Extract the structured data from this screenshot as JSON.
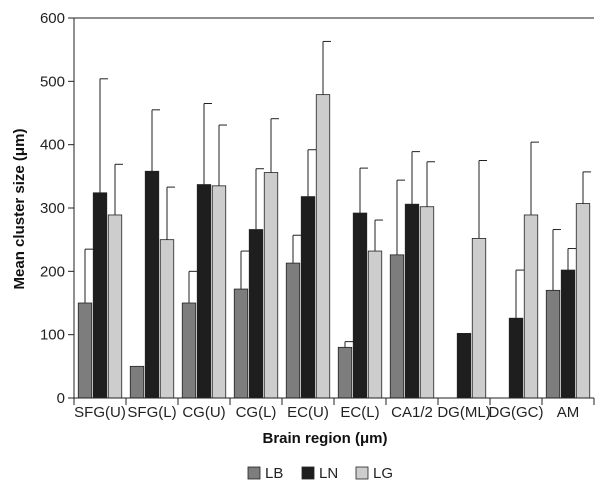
{
  "chart_data": {
    "type": "bar",
    "title": "",
    "xlabel": "Brain region (μm)",
    "ylabel": "Mean cluster size (μm)",
    "ylim": [
      0,
      600
    ],
    "yticks": [
      0,
      100,
      200,
      300,
      400,
      500,
      600
    ],
    "categories": [
      "SFG(U)",
      "SFG(L)",
      "CG(U)",
      "CG(L)",
      "EC(U)",
      "EC(L)",
      "CA1/2",
      "DG(ML)",
      "DG(GC)",
      "AM"
    ],
    "legend_position": "bottom-center",
    "grid": false,
    "series": [
      {
        "name": "LB",
        "color": "#7d7d7d",
        "values": [
          150,
          50,
          150,
          172,
          213,
          80,
          226,
          null,
          null,
          170
        ],
        "errors": [
          85,
          null,
          50,
          60,
          44,
          9,
          118,
          null,
          null,
          96
        ]
      },
      {
        "name": "LN",
        "color": "#1e1e1e",
        "values": [
          324,
          358,
          337,
          266,
          318,
          292,
          306,
          102,
          126,
          202
        ],
        "errors": [
          180,
          97,
          128,
          96,
          74,
          71,
          83,
          null,
          76,
          34
        ]
      },
      {
        "name": "LG",
        "color": "#cdcdcd",
        "values": [
          289,
          250,
          335,
          356,
          479,
          232,
          302,
          252,
          289,
          307
        ],
        "errors": [
          80,
          83,
          96,
          85,
          84,
          49,
          71,
          123,
          115,
          50
        ]
      }
    ]
  }
}
